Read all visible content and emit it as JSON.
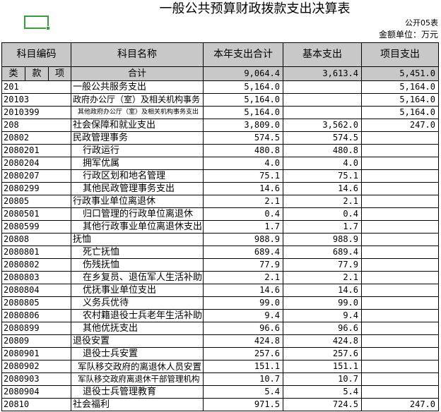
{
  "title": "一般公共预算财政拨款支出决算表",
  "form_no": "公开05表",
  "unit": "金额单位：万元",
  "colors": {
    "header_fill": "#c8c8c8",
    "selection": "#3c9c3c",
    "grid_line": "#000000"
  },
  "headers": {
    "code": "科目编码",
    "name": "科目名称",
    "total": "本年支出合计",
    "basic": "基本支出",
    "project": "项目支出"
  },
  "subheaders": {
    "lei": "类",
    "kuan": "款",
    "xiang": "项"
  },
  "total_row": {
    "name": "合计",
    "total": "9,064.4",
    "basic": "3,613.4",
    "project": "5,451.0"
  },
  "rows": [
    {
      "code": "201",
      "name": "一般公共服务支出",
      "total": "5,164.0",
      "basic": "",
      "project": "5,164.0"
    },
    {
      "code": "20103",
      "name": "政府办公厅（室）及相关机构事务",
      "total": "5,164.0",
      "basic": "",
      "project": "5,164.0"
    },
    {
      "code": "2010399",
      "name": "其他政府办公厅（室）及相关机构事务支出",
      "total": "5,164.0",
      "basic": "",
      "project": "5,164.0"
    },
    {
      "code": "208",
      "name": "社会保障和就业支出",
      "total": "3,809.0",
      "basic": "3,562.0",
      "project": "247.0"
    },
    {
      "code": "20802",
      "name": "民政管理事务",
      "total": "574.5",
      "basic": "574.5",
      "project": ""
    },
    {
      "code": "2080201",
      "name": "行政运行",
      "total": "480.8",
      "basic": "480.8",
      "project": ""
    },
    {
      "code": "2080204",
      "name": "拥军优属",
      "total": "4.0",
      "basic": "4.0",
      "project": ""
    },
    {
      "code": "2080207",
      "name": "行政区划和地名管理",
      "total": "75.1",
      "basic": "75.1",
      "project": ""
    },
    {
      "code": "2080299",
      "name": "其他民政管理事务支出",
      "total": "14.6",
      "basic": "14.6",
      "project": ""
    },
    {
      "code": "20805",
      "name": "行政事业单位离退休",
      "total": "2.1",
      "basic": "2.1",
      "project": ""
    },
    {
      "code": "2080501",
      "name": "归口管理的行政单位离退休",
      "total": "0.4",
      "basic": "0.4",
      "project": ""
    },
    {
      "code": "2080599",
      "name": "其他行政事业单位离退休支出",
      "total": "1.7",
      "basic": "1.7",
      "project": ""
    },
    {
      "code": "20808",
      "name": "抚恤",
      "total": "988.9",
      "basic": "988.9",
      "project": ""
    },
    {
      "code": "2080801",
      "name": "死亡抚恤",
      "total": "689.4",
      "basic": "689.4",
      "project": ""
    },
    {
      "code": "2080802",
      "name": "伤残抚恤",
      "total": "77.9",
      "basic": "77.9",
      "project": ""
    },
    {
      "code": "2080803",
      "name": "在乡复员、退伍军人生活补助",
      "total": "2.1",
      "basic": "2.1",
      "project": ""
    },
    {
      "code": "2080804",
      "name": "优抚事业单位支出",
      "total": "14.6",
      "basic": "14.6",
      "project": ""
    },
    {
      "code": "2080805",
      "name": "义务兵优待",
      "total": "99.0",
      "basic": "99.0",
      "project": ""
    },
    {
      "code": "2080806",
      "name": "农村籍退役士兵老年生活补助",
      "total": "9.4",
      "basic": "9.4",
      "project": ""
    },
    {
      "code": "2080899",
      "name": "其他优抚支出",
      "total": "96.6",
      "basic": "96.6",
      "project": ""
    },
    {
      "code": "20809",
      "name": "退役安置",
      "total": "424.8",
      "basic": "424.8",
      "project": ""
    },
    {
      "code": "2080901",
      "name": "退役士兵安置",
      "total": "257.6",
      "basic": "257.6",
      "project": ""
    },
    {
      "code": "2080902",
      "name": "军队移交政府的离退休人员安置",
      "total": "151.1",
      "basic": "151.1",
      "project": ""
    },
    {
      "code": "2080903",
      "name": "军队移交政府离退休干部管理机构",
      "total": "10.7",
      "basic": "10.7",
      "project": ""
    },
    {
      "code": "2080904",
      "name": "退役士兵管理教育",
      "total": "5.4",
      "basic": "5.4",
      "project": ""
    },
    {
      "code": "20810",
      "name": "社会福利",
      "total": "971.5",
      "basic": "724.5",
      "project": "247.0"
    }
  ]
}
